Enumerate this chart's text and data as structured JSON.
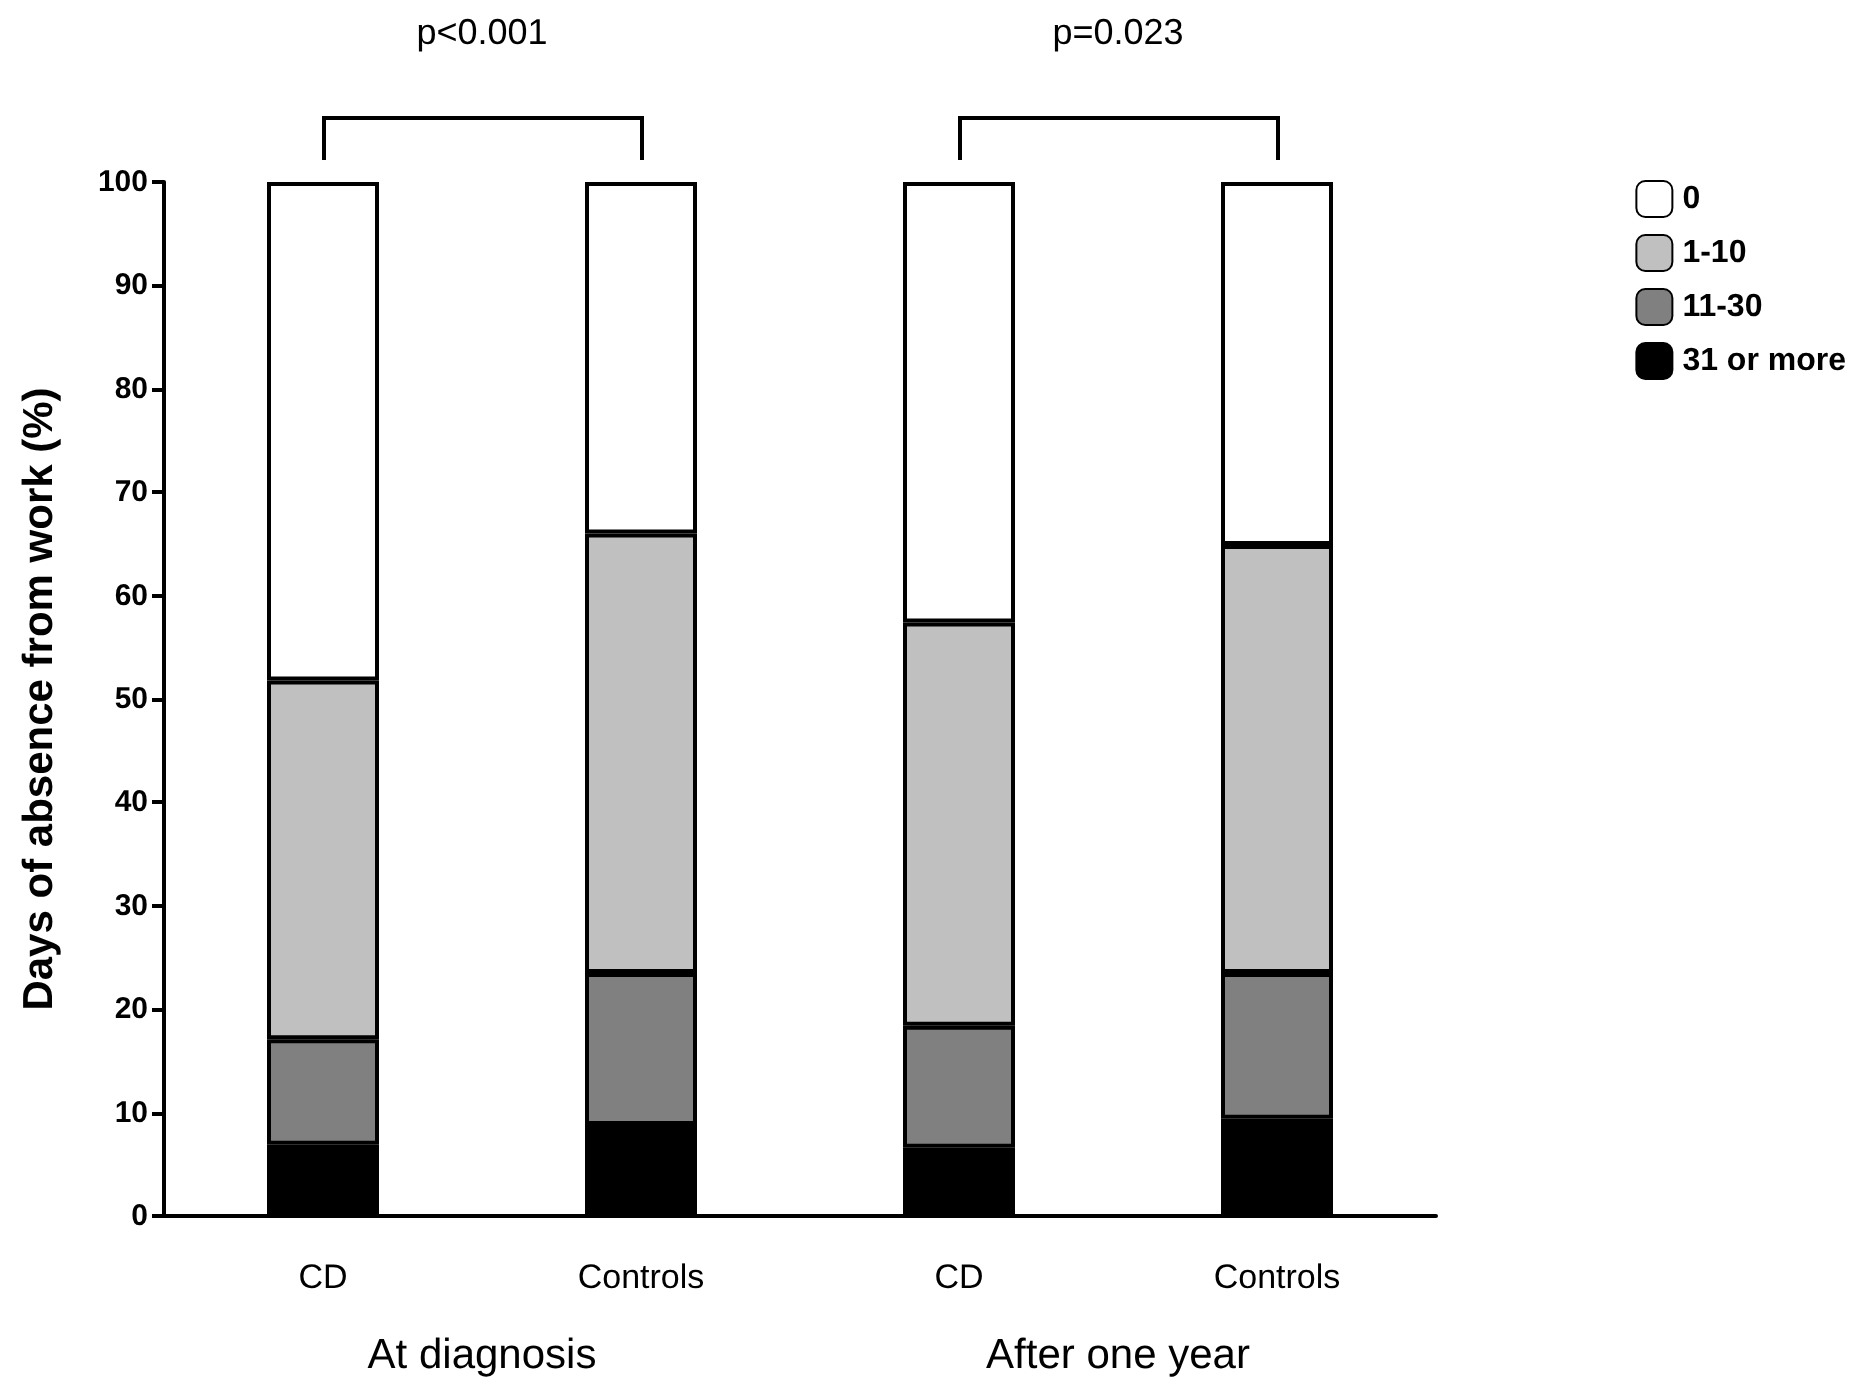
{
  "chart_data": {
    "type": "bar",
    "stacked": true,
    "ylabel": "Days of absence from work (%)",
    "categories": [
      "CD",
      "Controls",
      "CD",
      "Controls"
    ],
    "series": [
      {
        "name": "31 or more",
        "color": "#000000",
        "values": [
          6.9,
          8.8,
          6.6,
          9.4
        ]
      },
      {
        "name": "11-30",
        "color": "#808080",
        "values": [
          10.2,
          14.7,
          11.8,
          14.1
        ]
      },
      {
        "name": "1-10",
        "color": "#c0c0c0",
        "values": [
          34.7,
          42.5,
          39.0,
          41.4
        ]
      },
      {
        "name": "0",
        "color": "#ffffff",
        "values": [
          48.2,
          34.0,
          42.6,
          35.1
        ]
      }
    ],
    "ylim": [
      0,
      100
    ],
    "yticks": [
      0,
      10,
      20,
      30,
      40,
      50,
      60,
      70,
      80,
      90,
      100
    ],
    "grid": false,
    "legend": "top right",
    "annotations": [
      "p<0.001",
      "p=0.023",
      "At diagnosis",
      "After one year"
    ]
  }
}
